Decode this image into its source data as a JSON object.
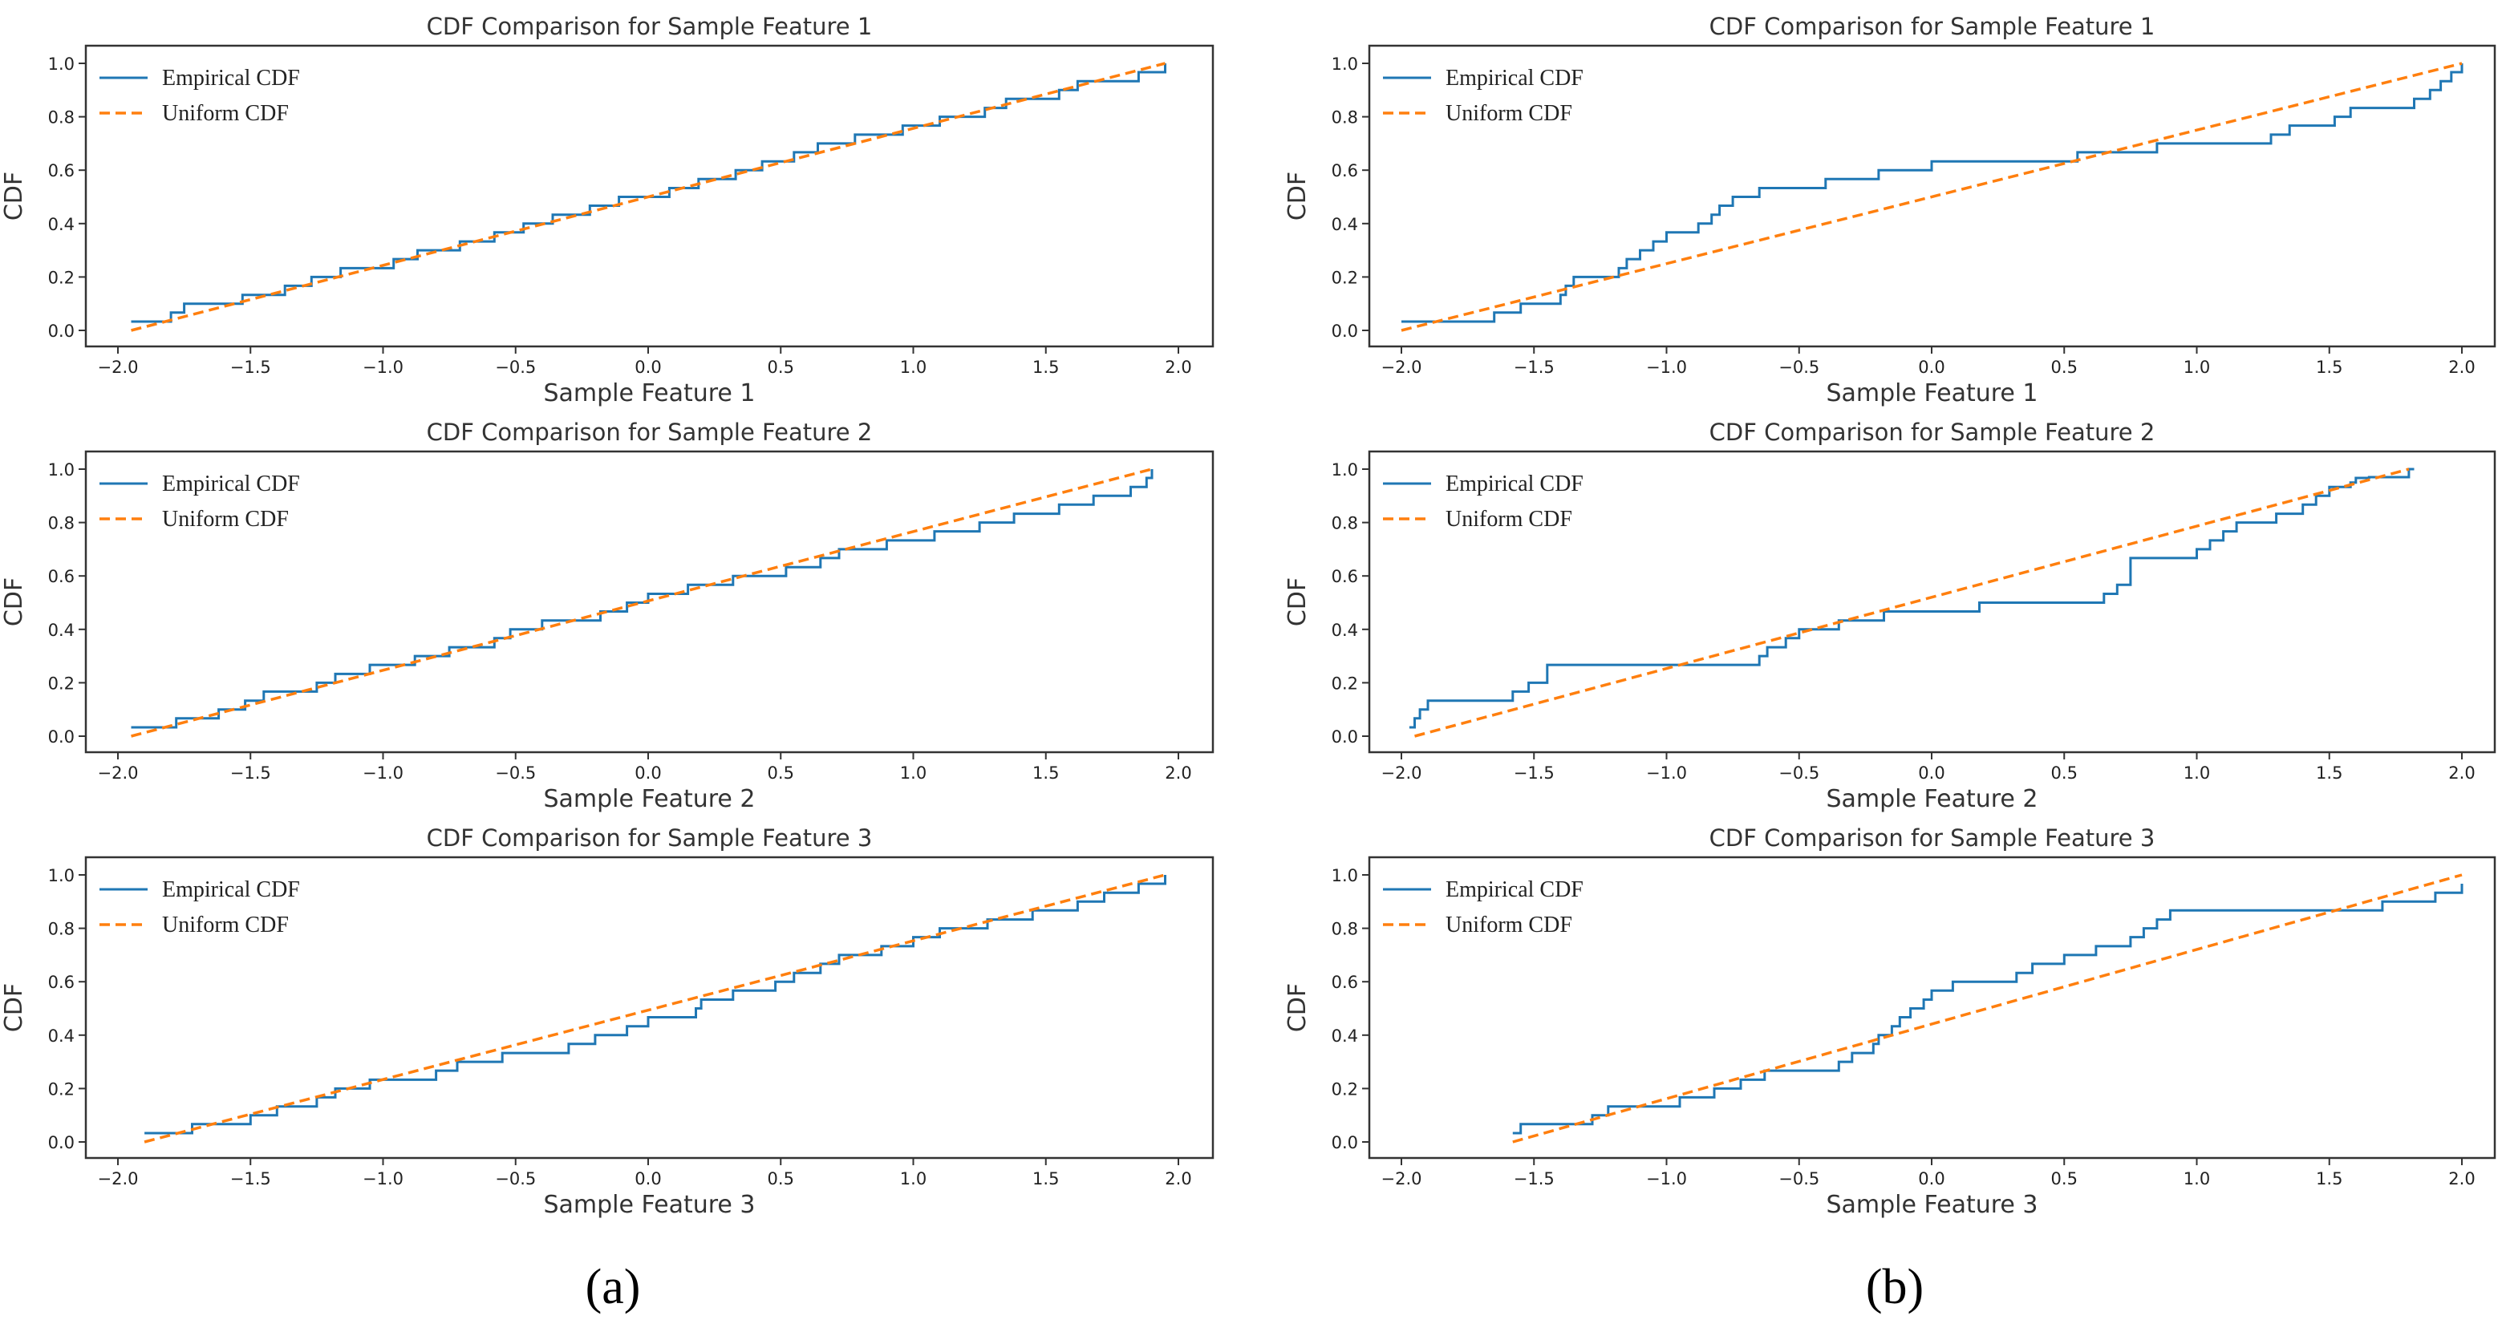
{
  "captions": [
    "(a)",
    "(b)"
  ],
  "legend": {
    "empirical": "Empirical CDF",
    "uniform": "Uniform CDF"
  },
  "colors": {
    "empirical": "#1f77b4",
    "uniform": "#ff7f0e"
  },
  "chart_data": [
    {
      "type": "line",
      "panel": "a",
      "title": "CDF Comparison for Sample Feature 1",
      "xlabel": "Sample Feature 1",
      "ylabel": "CDF",
      "xlim": [
        -2.0,
        2.0
      ],
      "ylim": [
        0.0,
        1.0
      ],
      "xticks": [
        -2.0,
        -1.5,
        -1.0,
        -0.5,
        0.0,
        0.5,
        1.0,
        1.5,
        2.0
      ],
      "yticks": [
        0.0,
        0.2,
        0.4,
        0.6,
        0.8,
        1.0
      ],
      "legend_position": "top-left",
      "grid": false,
      "series": [
        {
          "name": "Empirical CDF",
          "kind": "step",
          "x": [
            -1.95,
            -1.8,
            -1.75,
            -1.53,
            -1.37,
            -1.27,
            -1.16,
            -0.96,
            -0.87,
            -0.71,
            -0.58,
            -0.47,
            -0.36,
            -0.22,
            -0.11,
            0.08,
            0.19,
            0.33,
            0.43,
            0.55,
            0.64,
            0.78,
            0.96,
            1.1,
            1.27,
            1.35,
            1.55,
            1.62,
            1.85,
            1.95
          ],
          "y": [
            0.033,
            0.067,
            0.1,
            0.133,
            0.167,
            0.2,
            0.233,
            0.267,
            0.3,
            0.333,
            0.367,
            0.4,
            0.433,
            0.467,
            0.5,
            0.533,
            0.567,
            0.6,
            0.633,
            0.667,
            0.7,
            0.733,
            0.767,
            0.8,
            0.833,
            0.867,
            0.9,
            0.933,
            0.967,
            1.0
          ]
        },
        {
          "name": "Uniform CDF",
          "kind": "dashed",
          "x": [
            -1.95,
            1.95
          ],
          "y": [
            0.0,
            1.0
          ]
        }
      ]
    },
    {
      "type": "line",
      "panel": "b",
      "title": "CDF Comparison for Sample Feature 1",
      "xlabel": "Sample Feature 1",
      "ylabel": "CDF",
      "xlim": [
        -2.0,
        2.0
      ],
      "ylim": [
        0.0,
        1.0
      ],
      "xticks": [
        -2.0,
        -1.5,
        -1.0,
        -0.5,
        0.0,
        0.5,
        1.0,
        1.5,
        2.0
      ],
      "yticks": [
        0.0,
        0.2,
        0.4,
        0.6,
        0.8,
        1.0
      ],
      "legend_position": "top-left",
      "grid": false,
      "series": [
        {
          "name": "Empirical CDF",
          "kind": "step",
          "x": [
            -2.0,
            -1.65,
            -1.55,
            -1.4,
            -1.38,
            -1.35,
            -1.18,
            -1.15,
            -1.1,
            -1.05,
            -1.0,
            -0.88,
            -0.83,
            -0.8,
            -0.75,
            -0.65,
            -0.4,
            -0.2,
            0.0,
            0.55,
            0.85,
            1.28,
            1.35,
            1.52,
            1.58,
            1.82,
            1.88,
            1.92,
            1.96,
            2.0
          ],
          "y": [
            0.033,
            0.067,
            0.1,
            0.133,
            0.167,
            0.2,
            0.233,
            0.267,
            0.3,
            0.333,
            0.367,
            0.4,
            0.433,
            0.467,
            0.5,
            0.533,
            0.567,
            0.6,
            0.633,
            0.667,
            0.7,
            0.733,
            0.767,
            0.8,
            0.833,
            0.867,
            0.9,
            0.933,
            0.967,
            1.0
          ]
        },
        {
          "name": "Uniform CDF",
          "kind": "dashed",
          "x": [
            -2.0,
            2.0
          ],
          "y": [
            0.0,
            1.0
          ]
        }
      ]
    },
    {
      "type": "line",
      "panel": "a",
      "title": "CDF Comparison for Sample Feature 2",
      "xlabel": "Sample Feature 2",
      "ylabel": "CDF",
      "xlim": [
        -2.0,
        2.0
      ],
      "ylim": [
        0.0,
        1.0
      ],
      "xticks": [
        -2.0,
        -1.5,
        -1.0,
        -0.5,
        0.0,
        0.5,
        1.0,
        1.5,
        2.0
      ],
      "yticks": [
        0.0,
        0.2,
        0.4,
        0.6,
        0.8,
        1.0
      ],
      "legend_position": "top-left",
      "grid": false,
      "series": [
        {
          "name": "Empirical CDF",
          "kind": "step",
          "x": [
            -1.95,
            -1.78,
            -1.62,
            -1.52,
            -1.45,
            -1.25,
            -1.18,
            -1.05,
            -0.88,
            -0.75,
            -0.58,
            -0.52,
            -0.4,
            -0.18,
            -0.08,
            0.0,
            0.15,
            0.32,
            0.52,
            0.65,
            0.72,
            0.9,
            1.08,
            1.25,
            1.38,
            1.55,
            1.68,
            1.82,
            1.88,
            1.9
          ],
          "y": [
            0.033,
            0.067,
            0.1,
            0.133,
            0.167,
            0.2,
            0.233,
            0.267,
            0.3,
            0.333,
            0.367,
            0.4,
            0.433,
            0.467,
            0.5,
            0.533,
            0.567,
            0.6,
            0.633,
            0.667,
            0.7,
            0.733,
            0.767,
            0.8,
            0.833,
            0.867,
            0.9,
            0.933,
            0.967,
            1.0
          ]
        },
        {
          "name": "Uniform CDF",
          "kind": "dashed",
          "x": [
            -1.95,
            1.9
          ],
          "y": [
            0.0,
            1.0
          ]
        }
      ]
    },
    {
      "type": "line",
      "panel": "b",
      "title": "CDF Comparison for Sample Feature 2",
      "xlabel": "Sample Feature 2",
      "ylabel": "CDF",
      "xlim": [
        -2.0,
        2.0
      ],
      "ylim": [
        0.0,
        1.0
      ],
      "xticks": [
        -2.0,
        -1.5,
        -1.0,
        -0.5,
        0.0,
        0.5,
        1.0,
        1.5,
        2.0
      ],
      "yticks": [
        0.0,
        0.2,
        0.4,
        0.6,
        0.8,
        1.0
      ],
      "legend_position": "top-left",
      "grid": false,
      "series": [
        {
          "name": "Empirical CDF",
          "kind": "step",
          "x": [
            -1.97,
            -1.95,
            -1.93,
            -1.9,
            -1.58,
            -1.52,
            -1.45,
            -0.65,
            -0.62,
            -0.55,
            -0.5,
            -0.35,
            -0.18,
            0.18,
            0.65,
            0.7,
            0.75,
            1.0,
            1.05,
            1.1,
            1.15,
            1.3,
            1.4,
            1.45,
            1.5,
            1.58,
            1.6,
            1.65,
            1.8,
            1.82
          ],
          "y": [
            0.033,
            0.067,
            0.1,
            0.133,
            0.167,
            0.2,
            0.267,
            0.3,
            0.333,
            0.367,
            0.4,
            0.433,
            0.467,
            0.5,
            0.533,
            0.567,
            0.667,
            0.7,
            0.733,
            0.767,
            0.8,
            0.833,
            0.867,
            0.9,
            0.933,
            0.95,
            0.967,
            0.97,
            1.0,
            1.0
          ]
        },
        {
          "name": "Uniform CDF",
          "kind": "dashed",
          "x": [
            -1.95,
            1.8
          ],
          "y": [
            0.0,
            1.0
          ]
        }
      ]
    },
    {
      "type": "line",
      "panel": "a",
      "title": "CDF Comparison for Sample Feature 3",
      "xlabel": "Sample Feature 3",
      "ylabel": "CDF",
      "xlim": [
        -2.0,
        2.0
      ],
      "ylim": [
        0.0,
        1.0
      ],
      "xticks": [
        -2.0,
        -1.5,
        -1.0,
        -0.5,
        0.0,
        0.5,
        1.0,
        1.5,
        2.0
      ],
      "yticks": [
        0.0,
        0.2,
        0.4,
        0.6,
        0.8,
        1.0
      ],
      "legend_position": "top-left",
      "grid": false,
      "series": [
        {
          "name": "Empirical CDF",
          "kind": "step",
          "x": [
            -1.9,
            -1.72,
            -1.5,
            -1.4,
            -1.25,
            -1.18,
            -1.05,
            -0.8,
            -0.72,
            -0.55,
            -0.3,
            -0.2,
            -0.08,
            0.0,
            0.18,
            0.2,
            0.32,
            0.48,
            0.55,
            0.65,
            0.72,
            0.88,
            1.0,
            1.1,
            1.28,
            1.45,
            1.62,
            1.72,
            1.85,
            1.95
          ],
          "y": [
            0.033,
            0.067,
            0.1,
            0.133,
            0.167,
            0.2,
            0.233,
            0.267,
            0.3,
            0.333,
            0.367,
            0.4,
            0.433,
            0.467,
            0.5,
            0.533,
            0.567,
            0.6,
            0.633,
            0.667,
            0.7,
            0.733,
            0.767,
            0.8,
            0.833,
            0.867,
            0.9,
            0.933,
            0.967,
            1.0
          ]
        },
        {
          "name": "Uniform CDF",
          "kind": "dashed",
          "x": [
            -1.9,
            1.95
          ],
          "y": [
            0.0,
            1.0
          ]
        }
      ]
    },
    {
      "type": "line",
      "panel": "b",
      "title": "CDF Comparison for Sample Feature 3",
      "xlabel": "Sample Feature 3",
      "ylabel": "CDF",
      "xlim": [
        -2.0,
        2.0
      ],
      "ylim": [
        0.0,
        1.0
      ],
      "xticks": [
        -2.0,
        -1.5,
        -1.0,
        -0.5,
        0.0,
        0.5,
        1.0,
        1.5,
        2.0
      ],
      "yticks": [
        0.0,
        0.2,
        0.4,
        0.6,
        0.8,
        1.0
      ],
      "legend_position": "top-left",
      "grid": false,
      "series": [
        {
          "name": "Empirical CDF",
          "kind": "step",
          "x": [
            -1.58,
            -1.55,
            -1.28,
            -1.22,
            -0.95,
            -0.82,
            -0.72,
            -0.63,
            -0.35,
            -0.3,
            -0.22,
            -0.2,
            -0.15,
            -0.12,
            -0.08,
            -0.03,
            0.0,
            0.08,
            0.32,
            0.38,
            0.5,
            0.62,
            0.75,
            0.8,
            0.85,
            0.9,
            1.7,
            1.9,
            2.0
          ],
          "y": [
            0.033,
            0.067,
            0.1,
            0.133,
            0.167,
            0.2,
            0.233,
            0.267,
            0.3,
            0.333,
            0.367,
            0.4,
            0.433,
            0.467,
            0.5,
            0.533,
            0.567,
            0.6,
            0.633,
            0.667,
            0.7,
            0.733,
            0.767,
            0.8,
            0.833,
            0.867,
            0.9,
            0.933,
            0.967
          ]
        },
        {
          "name": "Uniform CDF",
          "kind": "dashed",
          "x": [
            -1.58,
            2.0
          ],
          "y": [
            0.0,
            1.0
          ]
        }
      ]
    }
  ]
}
